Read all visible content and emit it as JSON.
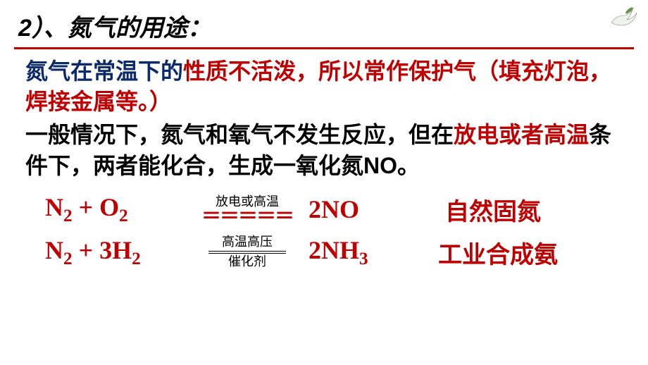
{
  "heading": {
    "text": "2）、氮气的用途：",
    "color": "#0b2a6b",
    "underline_color": "#c00000"
  },
  "para1": {
    "seg1": "氮气在常温下的",
    "seg1_color": "#0b2a6b",
    "seg2": "性质不活泼，所以常作保护气（填充灯泡，焊接金属等。）",
    "seg2_color": "#c00000"
  },
  "para2": {
    "seg1": "一般情况下，氮气和氧气不发生反应，但在",
    "seg1_color": "#000000",
    "seg2": "放电或者高温",
    "seg2_color": "#c00000",
    "seg3": "条件下，两者能化合，生成一氧化氮NO。",
    "seg3_color": "#000000"
  },
  "equations": [
    {
      "lhs_html": "N<sub>2</sub> + O<sub>2</sub>",
      "condition_top": "放电或高温",
      "condition_bottom": "",
      "bars_style": "red",
      "rhs_html": "2NO",
      "label": "自然固氮"
    },
    {
      "lhs_html": "N<sub>2</sub> + 3H<sub>2</sub>",
      "condition_top": "高温高压",
      "condition_bottom": "催化剂",
      "bars_style": "black",
      "rhs_html": "2NH<sub>3</sub>",
      "label": "工业合成氨"
    }
  ],
  "colors": {
    "red": "#c00000",
    "navy": "#0b2a6b",
    "black": "#000000",
    "bg": "#ffffff"
  }
}
